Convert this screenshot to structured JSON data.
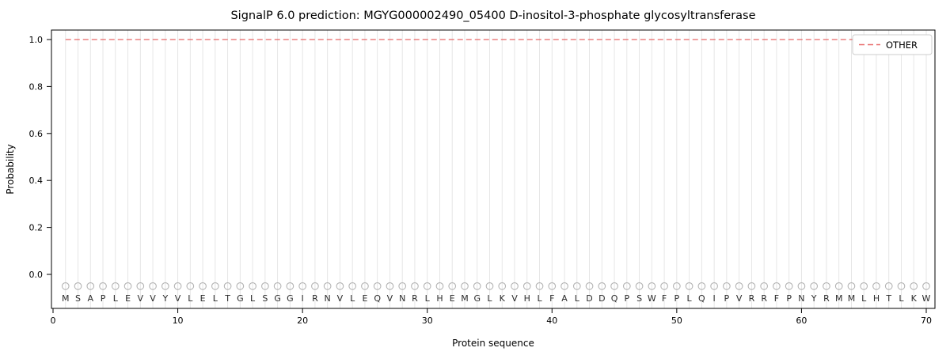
{
  "chart_data": {
    "type": "line",
    "title": "SignalP 6.0 prediction: MGYG000002490_05400 D-inositol-3-phosphate glycosyltransferase",
    "xlabel": "Protein sequence",
    "ylabel": "Probability",
    "x_ticks": [
      0,
      10,
      20,
      30,
      40,
      50,
      60,
      70
    ],
    "x_tick_labels": [
      "0",
      "10",
      "20",
      "30",
      "40",
      "50",
      "60",
      "70"
    ],
    "y_ticks": [
      0.0,
      0.2,
      0.4,
      0.6,
      0.8,
      1.0
    ],
    "y_tick_labels": [
      "0.0",
      "0.2",
      "0.4",
      "0.6",
      "0.8",
      "1.0"
    ],
    "ylim": [
      -0.15,
      1.07
    ],
    "xlim": [
      0,
      71.5
    ],
    "grid": "vertical-per-residue",
    "sequence": "MSAPLEVVYVLELTGLSGGIRNVLEQVNRLHEMGLKVHLFALDDQPSWFPLQIPVRRFPNYRMMLHTLKW",
    "series": [
      {
        "name": "OTHER",
        "style": "dashed",
        "color": "#e86a6a",
        "x_start": 1,
        "x_end": 70,
        "y_constant": 1.0
      }
    ],
    "residue_markers": {
      "symbol": "open-circle",
      "color": "#b4b4b4",
      "y_constant": -0.05,
      "x_start": 1,
      "x_end": 70
    },
    "legend": {
      "position": "upper right",
      "entries": [
        {
          "label": "OTHER",
          "color": "#e86a6a",
          "dash": true
        }
      ]
    },
    "colors": {
      "gridline": "#e3e3e3",
      "spine": "#000000",
      "marker_stroke": "#b4b4b4",
      "letter": "#2b2b2b"
    }
  }
}
